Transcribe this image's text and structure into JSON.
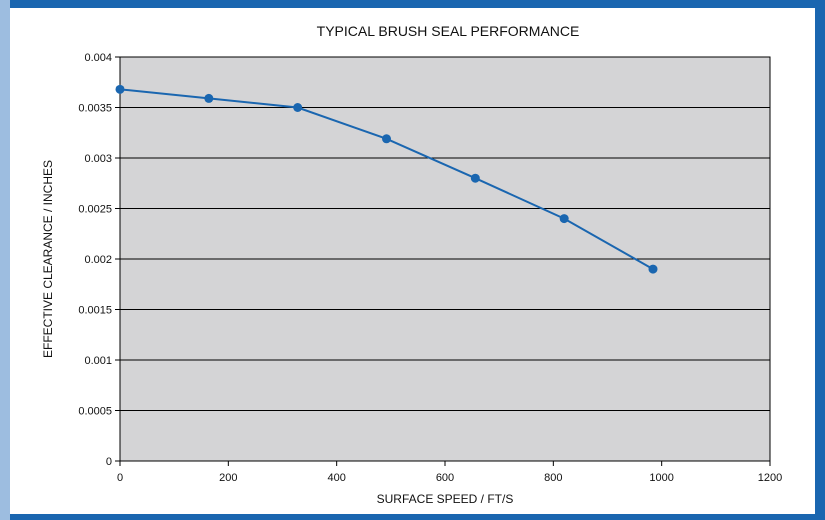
{
  "chart_data": {
    "type": "line",
    "title": "TYPICAL BRUSH SEAL PERFORMANCE",
    "xlabel": "SURFACE SPEED / FT/S",
    "ylabel": "EFFECTIVE CLEARANCE / INCHES",
    "xlim": [
      0,
      1200
    ],
    "ylim": [
      0,
      0.004
    ],
    "xticks": [
      "0",
      "200",
      "400",
      "600",
      "800",
      "1000",
      "1200"
    ],
    "yticks": [
      "0",
      "0.0005",
      "0.001",
      "0.0015",
      "0.002",
      "0.0025",
      "0.003",
      "0.0035",
      "0.004"
    ],
    "grid": "horizontal",
    "series": [
      {
        "x": [
          0,
          164,
          328,
          492,
          656,
          820,
          984
        ],
        "y": [
          0.00368,
          0.00359,
          0.0035,
          0.00319,
          0.0028,
          0.0024,
          0.0019
        ]
      }
    ]
  },
  "colors": {
    "frame": "#1a66b0",
    "plot_background": "#d4d4d6",
    "series_line": "#1a66b0",
    "gridline": "#000000"
  }
}
